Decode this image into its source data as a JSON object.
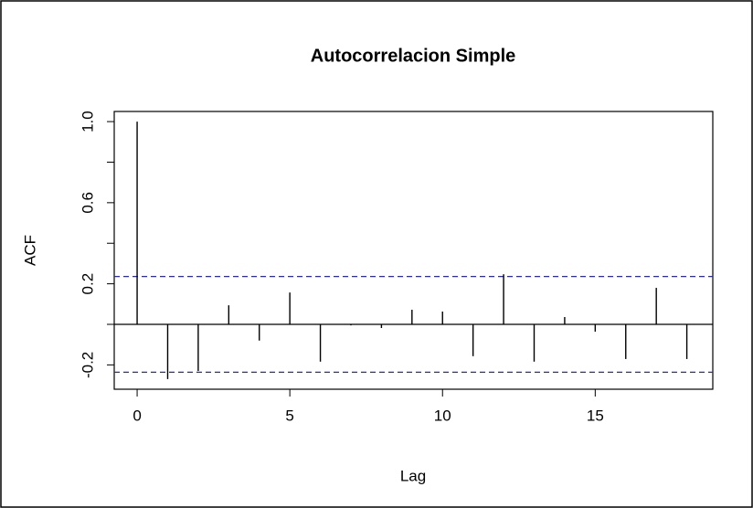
{
  "chart_data": {
    "type": "stem",
    "title": "Autocorrelacion Simple",
    "x_label": "Lag",
    "y_label": "ACF",
    "x": [
      0,
      1,
      2,
      3,
      4,
      5,
      6,
      7,
      8,
      9,
      10,
      11,
      12,
      13,
      14,
      15,
      16,
      17,
      18
    ],
    "values": [
      1.0,
      -0.27,
      -0.23,
      0.094,
      -0.08,
      0.157,
      -0.184,
      -0.005,
      -0.018,
      0.072,
      0.063,
      -0.157,
      0.247,
      -0.184,
      0.036,
      -0.036,
      -0.171,
      0.18,
      -0.171
    ],
    "color": "#000000",
    "confidence_lines": [
      0.236,
      -0.236
    ],
    "confidence_color": "#2b2bb0",
    "xlim": [
      -0.75,
      18.85
    ],
    "ylim": [
      -0.32,
      1.05
    ],
    "xticks": [
      0,
      5,
      10,
      15
    ],
    "yticks": [
      -0.2,
      0.2,
      0.6,
      {
        "value": 1,
        "label": "1.0"
      }
    ],
    "minor_yticks": [
      0,
      0.4,
      0.8
    ]
  }
}
